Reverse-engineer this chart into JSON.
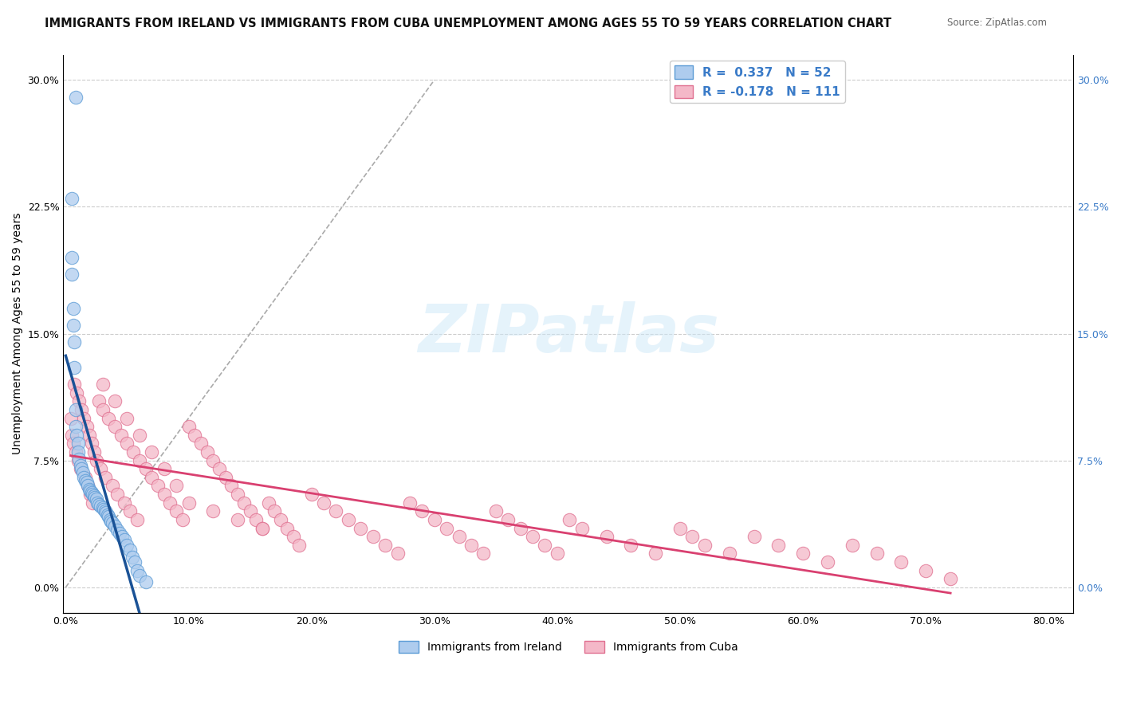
{
  "title": "IMMIGRANTS FROM IRELAND VS IMMIGRANTS FROM CUBA UNEMPLOYMENT AMONG AGES 55 TO 59 YEARS CORRELATION CHART",
  "source": "Source: ZipAtlas.com",
  "ylabel": "Unemployment Among Ages 55 to 59 years",
  "xlim": [
    -0.002,
    0.82
  ],
  "ylim": [
    -0.015,
    0.315
  ],
  "xticks": [
    0.0,
    0.1,
    0.2,
    0.3,
    0.4,
    0.5,
    0.6,
    0.7,
    0.8
  ],
  "xticklabels": [
    "0.0%",
    "10.0%",
    "20.0%",
    "30.0%",
    "40.0%",
    "50.0%",
    "60.0%",
    "70.0%",
    "80.0%"
  ],
  "yticks": [
    0.0,
    0.075,
    0.15,
    0.225,
    0.3
  ],
  "yticklabels_left": [
    "0.0%",
    "7.5%",
    "15.0%",
    "22.5%",
    "30.0%"
  ],
  "yticklabels_right": [
    "0.0%",
    "7.5%",
    "15.0%",
    "22.5%",
    "30.0%"
  ],
  "ireland_color": "#aeccee",
  "ireland_edge_color": "#5b9bd5",
  "cuba_color": "#f4b8c8",
  "cuba_edge_color": "#e07090",
  "ireland_line_color": "#1a5296",
  "cuba_line_color": "#d94070",
  "ireland_R": 0.337,
  "ireland_N": 52,
  "cuba_R": -0.178,
  "cuba_N": 111,
  "legend_label_ireland": "Immigrants from Ireland",
  "legend_label_cuba": "Immigrants from Cuba",
  "watermark": "ZIPatlas",
  "background_color": "#ffffff",
  "grid_color": "#cccccc",
  "right_tick_color": "#3a7bc8",
  "title_fontsize": 10.5,
  "axis_fontsize": 10,
  "tick_fontsize": 9,
  "ireland_scatter_x": [
    0.008,
    0.005,
    0.005,
    0.005,
    0.006,
    0.006,
    0.007,
    0.007,
    0.008,
    0.008,
    0.009,
    0.01,
    0.01,
    0.011,
    0.012,
    0.013,
    0.014,
    0.015,
    0.016,
    0.017,
    0.018,
    0.019,
    0.02,
    0.021,
    0.022,
    0.023,
    0.024,
    0.025,
    0.026,
    0.027,
    0.028,
    0.03,
    0.031,
    0.032,
    0.033,
    0.034,
    0.035,
    0.036,
    0.037,
    0.038,
    0.04,
    0.042,
    0.044,
    0.046,
    0.048,
    0.05,
    0.052,
    0.054,
    0.056,
    0.058,
    0.06,
    0.065
  ],
  "ireland_scatter_y": [
    0.29,
    0.23,
    0.195,
    0.185,
    0.165,
    0.155,
    0.145,
    0.13,
    0.105,
    0.095,
    0.09,
    0.085,
    0.08,
    0.076,
    0.072,
    0.07,
    0.068,
    0.065,
    0.063,
    0.062,
    0.06,
    0.058,
    0.057,
    0.056,
    0.055,
    0.054,
    0.053,
    0.052,
    0.05,
    0.049,
    0.048,
    0.047,
    0.046,
    0.045,
    0.044,
    0.043,
    0.042,
    0.04,
    0.039,
    0.038,
    0.036,
    0.034,
    0.032,
    0.03,
    0.028,
    0.025,
    0.022,
    0.018,
    0.015,
    0.01,
    0.007,
    0.003
  ],
  "cuba_scatter_x": [
    0.004,
    0.005,
    0.006,
    0.007,
    0.008,
    0.009,
    0.01,
    0.011,
    0.012,
    0.013,
    0.015,
    0.016,
    0.017,
    0.018,
    0.019,
    0.02,
    0.021,
    0.022,
    0.023,
    0.025,
    0.027,
    0.028,
    0.03,
    0.032,
    0.035,
    0.038,
    0.04,
    0.042,
    0.045,
    0.048,
    0.05,
    0.052,
    0.055,
    0.058,
    0.06,
    0.065,
    0.07,
    0.075,
    0.08,
    0.085,
    0.09,
    0.095,
    0.1,
    0.105,
    0.11,
    0.115,
    0.12,
    0.125,
    0.13,
    0.135,
    0.14,
    0.145,
    0.15,
    0.155,
    0.16,
    0.165,
    0.17,
    0.175,
    0.18,
    0.185,
    0.19,
    0.2,
    0.21,
    0.22,
    0.23,
    0.24,
    0.25,
    0.26,
    0.27,
    0.28,
    0.29,
    0.3,
    0.31,
    0.32,
    0.33,
    0.34,
    0.35,
    0.36,
    0.37,
    0.38,
    0.39,
    0.4,
    0.41,
    0.42,
    0.44,
    0.46,
    0.48,
    0.5,
    0.51,
    0.52,
    0.54,
    0.56,
    0.58,
    0.6,
    0.62,
    0.64,
    0.66,
    0.68,
    0.7,
    0.72,
    0.03,
    0.04,
    0.05,
    0.06,
    0.07,
    0.08,
    0.09,
    0.1,
    0.12,
    0.14,
    0.16
  ],
  "cuba_scatter_y": [
    0.1,
    0.09,
    0.085,
    0.12,
    0.08,
    0.115,
    0.075,
    0.11,
    0.07,
    0.105,
    0.1,
    0.065,
    0.095,
    0.06,
    0.09,
    0.055,
    0.085,
    0.05,
    0.08,
    0.075,
    0.11,
    0.07,
    0.105,
    0.065,
    0.1,
    0.06,
    0.095,
    0.055,
    0.09,
    0.05,
    0.085,
    0.045,
    0.08,
    0.04,
    0.075,
    0.07,
    0.065,
    0.06,
    0.055,
    0.05,
    0.045,
    0.04,
    0.095,
    0.09,
    0.085,
    0.08,
    0.075,
    0.07,
    0.065,
    0.06,
    0.055,
    0.05,
    0.045,
    0.04,
    0.035,
    0.05,
    0.045,
    0.04,
    0.035,
    0.03,
    0.025,
    0.055,
    0.05,
    0.045,
    0.04,
    0.035,
    0.03,
    0.025,
    0.02,
    0.05,
    0.045,
    0.04,
    0.035,
    0.03,
    0.025,
    0.02,
    0.045,
    0.04,
    0.035,
    0.03,
    0.025,
    0.02,
    0.04,
    0.035,
    0.03,
    0.025,
    0.02,
    0.035,
    0.03,
    0.025,
    0.02,
    0.03,
    0.025,
    0.02,
    0.015,
    0.025,
    0.02,
    0.015,
    0.01,
    0.005,
    0.12,
    0.11,
    0.1,
    0.09,
    0.08,
    0.07,
    0.06,
    0.05,
    0.045,
    0.04,
    0.035
  ],
  "diag_line_x": [
    0.0,
    0.3
  ],
  "diag_line_y": [
    0.0,
    0.3
  ]
}
